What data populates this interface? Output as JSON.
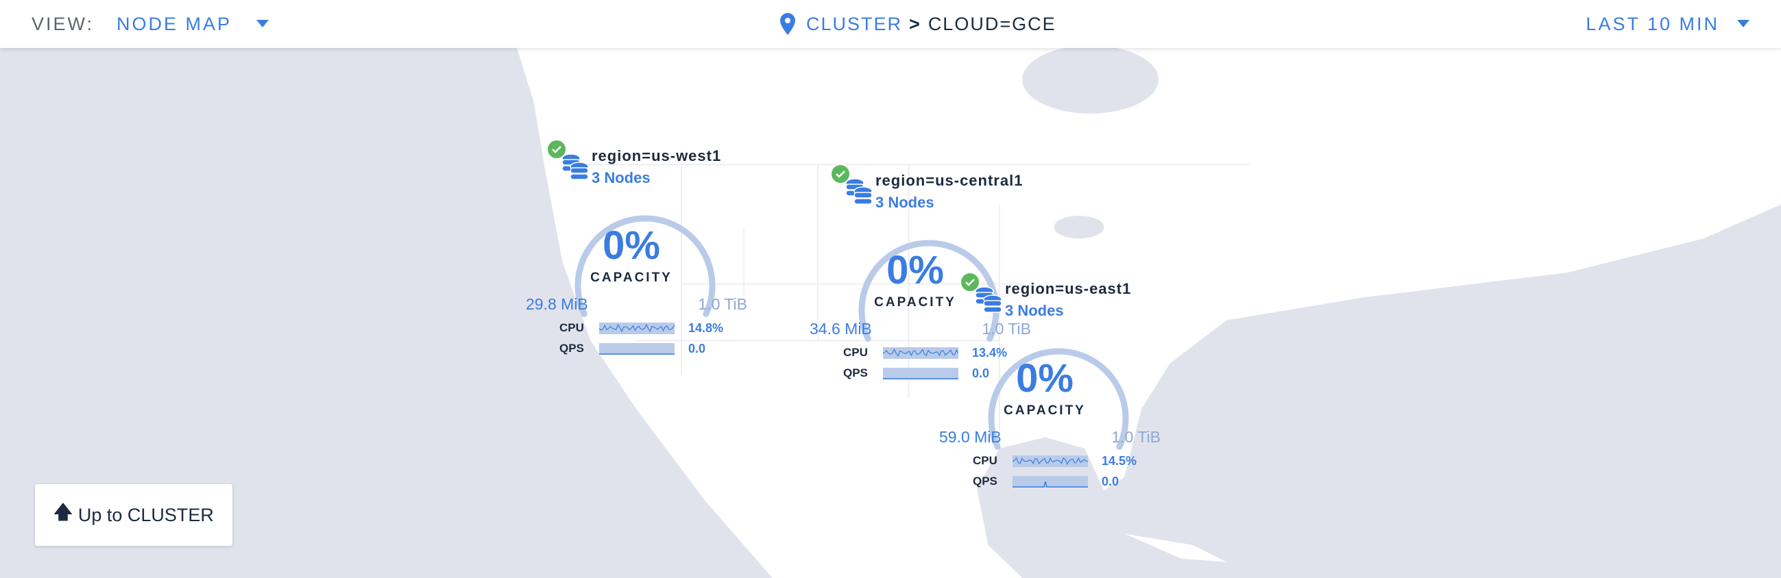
{
  "header": {
    "view_label": "VIEW:",
    "view_value": "NODE MAP",
    "breadcrumb": {
      "root": "CLUSTER",
      "separator": ">",
      "current": "CLOUD=GCE"
    },
    "time_range": "LAST 10 MIN"
  },
  "colors": {
    "accent": "#3a7de1",
    "ok": "#5cb85c",
    "gauge_track": "#b9cbe9",
    "ocean": "#e1e3ec",
    "land": "#ffffff"
  },
  "regions": [
    {
      "name": "region=us-west1",
      "nodes": "3 Nodes",
      "status": "healthy",
      "capacity_pct": "0%",
      "capacity_value": 0,
      "capacity_label": "CAPACITY",
      "used": "29.8 MiB",
      "total": "1.0 TiB",
      "cpu_label": "CPU",
      "cpu": "14.8%",
      "qps_label": "QPS",
      "qps": "0.0"
    },
    {
      "name": "region=us-central1",
      "nodes": "3 Nodes",
      "status": "healthy",
      "capacity_pct": "0%",
      "capacity_value": 0,
      "capacity_label": "CAPACITY",
      "used": "34.6 MiB",
      "total": "1.0 TiB",
      "cpu_label": "CPU",
      "cpu": "13.4%",
      "qps_label": "QPS",
      "qps": "0.0"
    },
    {
      "name": "region=us-east1",
      "nodes": "3 Nodes",
      "status": "healthy",
      "capacity_pct": "0%",
      "capacity_value": 0,
      "capacity_label": "CAPACITY",
      "used": "59.0 MiB",
      "total": "1.0 TiB",
      "cpu_label": "CPU",
      "cpu": "14.5%",
      "qps_label": "QPS",
      "qps": "0.0"
    }
  ],
  "up_button": {
    "arrow_icon": "arrow-up-icon",
    "label": "Up to CLUSTER"
  }
}
